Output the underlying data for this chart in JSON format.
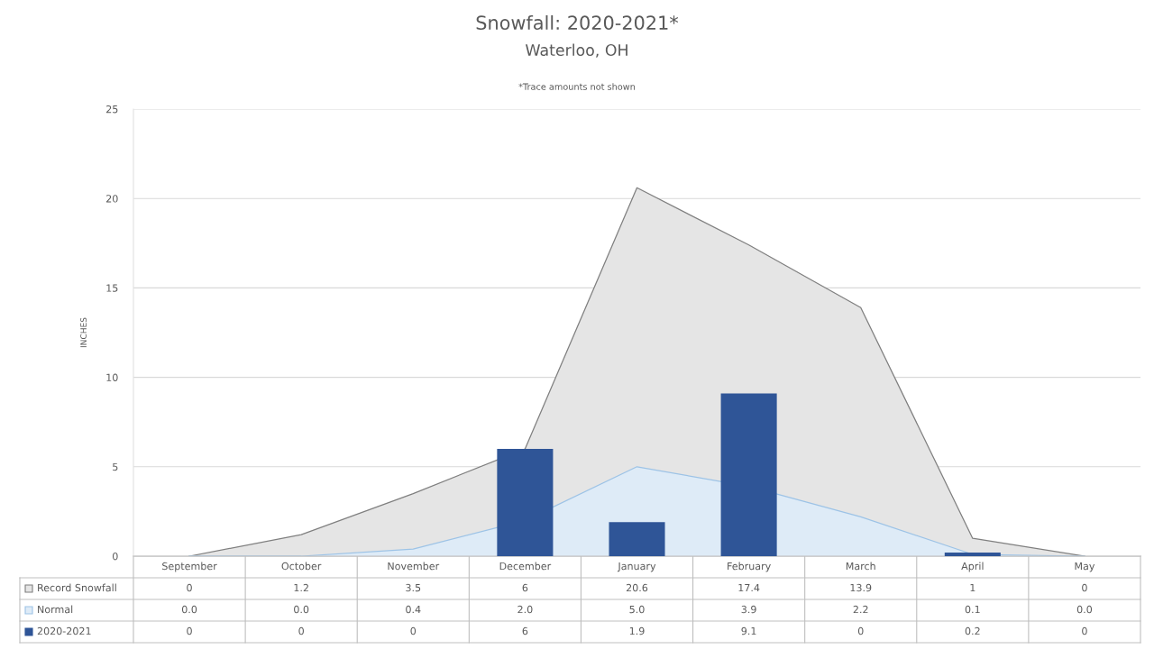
{
  "chart_data": {
    "type": "area",
    "title": "Snowfall: 2020-2021*",
    "subtitle": "Waterloo, OH",
    "ylabel": "INCHES",
    "annotations": [
      "*Trace amounts not shown"
    ],
    "categories": [
      "September",
      "October",
      "November",
      "December",
      "January",
      "February",
      "March",
      "April",
      "May"
    ],
    "series": [
      {
        "name": "Record Snowfall",
        "color": "#e5e5e5",
        "values": [
          0,
          1.2,
          3.5,
          6,
          20.6,
          17.4,
          13.9,
          1,
          0
        ],
        "value_labels": [
          "0",
          "1.2",
          "3.5",
          "6",
          "20.6",
          "17.4",
          "13.9",
          "1",
          "0"
        ]
      },
      {
        "name": "Normal",
        "color": "#deebf7",
        "values": [
          0.0,
          0.0,
          0.4,
          2.0,
          5.0,
          3.9,
          2.2,
          0.1,
          0.0
        ],
        "value_labels": [
          "0.0",
          "0.0",
          "0.4",
          "2.0",
          "5.0",
          "3.9",
          "2.2",
          "0.1",
          "0.0"
        ]
      },
      {
        "name": "2020-2021",
        "type": "bar",
        "color": "#2f5597",
        "values": [
          0,
          0,
          0,
          6,
          1.9,
          9.1,
          0,
          0.2,
          0
        ],
        "value_labels": [
          "0",
          "0",
          "0",
          "6",
          "1.9",
          "9.1",
          "0",
          "0.2",
          "0"
        ]
      }
    ],
    "ylim": [
      0,
      25
    ],
    "yticks": [
      0,
      5,
      10,
      15,
      20,
      25
    ],
    "grid": "y",
    "legend": "bottom"
  }
}
